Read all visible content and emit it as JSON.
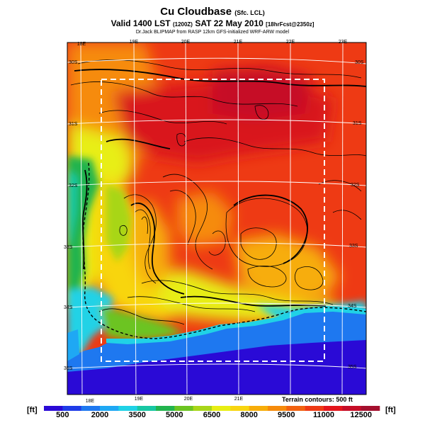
{
  "header": {
    "title": "Cu Cloudbase",
    "title_suffix": "(Sfc. LCL)",
    "valid_main": "Valid 1400 LST",
    "valid_z": "(1200Z)",
    "valid_date": "SAT 22 May 2010",
    "valid_fcst": "[18hrFcst@2350z]",
    "model_line": "Dr.Jack BLIPMAP from RASP 12km GFS-initialized WRF-ARW model"
  },
  "map": {
    "lon_labels_top": [
      "18E",
      "19E",
      "20E",
      "21E",
      "22E",
      "23E"
    ],
    "lon_labels_bottom": [
      "18E",
      "19E",
      "20E",
      "21E"
    ],
    "lat_labels_left": [
      "30S",
      "31S",
      "32S",
      "33S",
      "34S",
      "35S"
    ],
    "lat_labels_right": [
      "30S",
      "31S",
      "32S",
      "33S",
      "34S",
      "35S"
    ],
    "terrain_note": "Terrain contours: 500 ft"
  },
  "colorbar": {
    "unit_left": "[ft]",
    "unit_right": "[ft]",
    "tick_labels": [
      "500",
      "2000",
      "3500",
      "5000",
      "6500",
      "8000",
      "9500",
      "11000",
      "12500"
    ],
    "colors": [
      "#2a0ad6",
      "#1f3ce8",
      "#1e78f0",
      "#1fa8f4",
      "#20d2e6",
      "#18c7a3",
      "#22b44e",
      "#6cc421",
      "#a8d619",
      "#e8ee13",
      "#f8d510",
      "#f7ad0a",
      "#f68b0b",
      "#f26210",
      "#ee3a14",
      "#e4151b",
      "#c60d27",
      "#a4102e"
    ]
  }
}
